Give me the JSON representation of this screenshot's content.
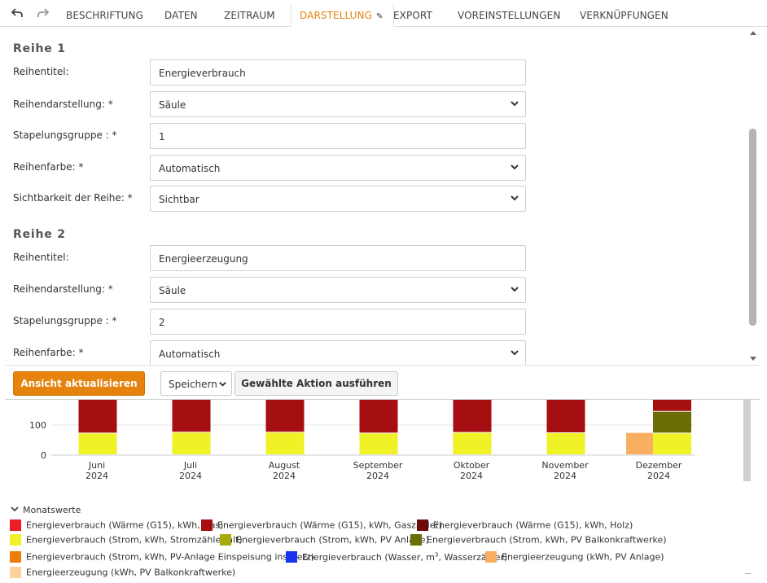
{
  "toolbar": {
    "undo_icon": "undo-icon",
    "redo_icon": "redo-icon",
    "tabs": [
      {
        "label": "BESCHRIFTUNG"
      },
      {
        "label": "DATEN"
      },
      {
        "label": "ZEITRAUM"
      },
      {
        "label": "DARSTELLUNG",
        "active": true
      },
      {
        "label": "EXPORT"
      },
      {
        "label": "VOREINSTELLUNGEN"
      },
      {
        "label": "VERKNÜPFUNGEN"
      }
    ],
    "active_color": "#e6820e"
  },
  "form": {
    "series": [
      {
        "title": "Reihe 1",
        "fields": [
          {
            "label": "Reihentitel:",
            "value": "Energieverbrauch",
            "type": "text"
          },
          {
            "label": "Reihendarstellung: *",
            "value": "Säule",
            "type": "select"
          },
          {
            "label": "Stapelungsgruppe : *",
            "value": "1",
            "type": "text"
          },
          {
            "label": "Reihenfarbe: *",
            "value": "Automatisch",
            "type": "select"
          },
          {
            "label": "Sichtbarkeit der Reihe: *",
            "value": "Sichtbar",
            "type": "select"
          }
        ]
      },
      {
        "title": "Reihe 2",
        "fields": [
          {
            "label": "Reihentitel:",
            "value": "Energieerzeugung",
            "type": "text"
          },
          {
            "label": "Reihendarstellung: *",
            "value": "Säule",
            "type": "select"
          },
          {
            "label": "Stapelungsgruppe : *",
            "value": "2",
            "type": "text"
          },
          {
            "label": "Reihenfarbe: *",
            "value": "Automatisch",
            "type": "select"
          }
        ]
      }
    ]
  },
  "actions": {
    "update_label": "Ansicht aktualisieren",
    "save_select_value": "Speichern",
    "execute_label": "Gewählte Aktion ausführen"
  },
  "chart_data": {
    "type": "bar",
    "categories": [
      {
        "month": "Juni",
        "year": "2024"
      },
      {
        "month": "Juli",
        "year": "2024"
      },
      {
        "month": "August",
        "year": "2024"
      },
      {
        "month": "September",
        "year": "2024"
      },
      {
        "month": "Oktober",
        "year": "2024"
      },
      {
        "month": "November",
        "year": "2024"
      },
      {
        "month": "Dezember",
        "year": "2024"
      }
    ],
    "yticks": [
      0,
      100
    ],
    "stacks": {
      "verbrauch": [
        {
          "series": "Energieverbrauch (Strom, kWh, Stromzähler alt)",
          "values": [
            72,
            75,
            75,
            72,
            74,
            73,
            72
          ]
        },
        {
          "series": "Energieverbrauch (Strom, kWh, PV Balkonkraftwerke)",
          "values": [
            0,
            0,
            0,
            0,
            0,
            0,
            72
          ]
        },
        {
          "series": "Energieverbrauch (Strom, kWh, PV Anlage)",
          "values": [
            0,
            0,
            0,
            0,
            0,
            0,
            0
          ]
        },
        {
          "series": "Energieverbrauch (Wärme (G15), kWh, Gaszähler)",
          "values": [
            115,
            115,
            115,
            115,
            115,
            115,
            145
          ]
        }
      ],
      "erzeugung": [
        {
          "series": "Energieerzeugung (kWh, PV Anlage)",
          "values": [
            0,
            0,
            0,
            0,
            0,
            0,
            74
          ]
        }
      ]
    }
  },
  "legend": {
    "title": "Monatswerte",
    "items": [
      {
        "label": "Energieverbrauch (Wärme (G15), kWh, Gas)",
        "color": "#ee1c25"
      },
      {
        "label": "Energieverbrauch (Wärme (G15), kWh, Gaszähler)",
        "color": "#a50f12"
      },
      {
        "label": "Energieverbrauch (Wärme (G15), kWh, Holz)",
        "color": "#6d0a0c"
      },
      {
        "label": "Energieverbrauch (Strom, kWh, Stromzähler alt)",
        "color": "#eef226"
      },
      {
        "label": "Energieverbrauch (Strom, kWh, PV Anlage)",
        "color": "#a8aa0e"
      },
      {
        "label": "Energieverbrauch (Strom, kWh, PV Balkonkraftwerke)",
        "color": "#6b6d06"
      },
      {
        "label": "Energieverbrauch (Strom, kWh, PV-Anlage Einspeisung ins Netz)",
        "color": "#ef7d0d"
      },
      {
        "label": "Energieverbrauch (Wasser, m",
        "label_sup": "3",
        "label_after": ", Wasserzähler)",
        "color": "#1a33ee"
      },
      {
        "label": "Energieerzeugung (kWh, PV Anlage)",
        "color": "#f9ae62"
      },
      {
        "label": "Energieerzeugung (kWh, PV Balkonkraftwerke)",
        "color": "#fcd19b"
      }
    ]
  }
}
